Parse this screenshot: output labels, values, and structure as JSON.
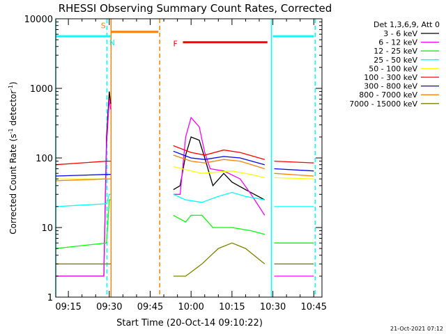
{
  "chart_data": {
    "type": "line",
    "title": "RHESSI Observing Summary Count Rates, Corrected",
    "xlabel": "Start Time (20-Oct-14 09:10:22)",
    "ylabel": "Corrected Count Rate (s",
    "ylabel_sup": "-1",
    "ylabel_tail": " detector",
    "ylabel_close": ")",
    "yscale": "log",
    "ylim": [
      1,
      10000
    ],
    "xlim": [
      "09:10:22",
      "10:48:00"
    ],
    "x_ticks": [
      "09:15",
      "09:30",
      "09:45",
      "10:00",
      "10:15",
      "10:30",
      "10:45"
    ],
    "y_ticks": [
      "1",
      "10",
      "100",
      "1000",
      "10000"
    ],
    "legend_title": "Det 1,3,6,9, Att 0",
    "legend_placement": "right",
    "grid": false,
    "series": [
      {
        "name": "3 - 6 keV",
        "color": "#000000",
        "points": [
          [
            "09:10:22",
            2
          ],
          [
            "09:28:00",
            2
          ],
          [
            "09:29:00",
            200
          ],
          [
            "09:30:00",
            900
          ],
          [
            "09:30:30",
            600
          ],
          [
            "09:31:00",
            null
          ],
          [
            "09:53:00",
            null
          ],
          [
            "09:53:30",
            35
          ],
          [
            "09:56:00",
            40
          ],
          [
            "09:58:00",
            110
          ],
          [
            "10:00:00",
            200
          ],
          [
            "10:03:00",
            180
          ],
          [
            "10:05:00",
            100
          ],
          [
            "10:08:00",
            40
          ],
          [
            "10:12:00",
            60
          ],
          [
            "10:15:00",
            45
          ],
          [
            "10:20:00",
            35
          ],
          [
            "10:27:00",
            25
          ],
          [
            "10:28:00",
            null
          ]
        ]
      },
      {
        "name": "6 - 12 keV",
        "color": "#ff00ff",
        "points": [
          [
            "09:10:22",
            2
          ],
          [
            "09:28:00",
            2
          ],
          [
            "09:29:00",
            150
          ],
          [
            "09:30:00",
            700
          ],
          [
            "09:30:30",
            500
          ],
          [
            "09:31:00",
            null
          ],
          [
            "09:53:00",
            null
          ],
          [
            "09:53:30",
            30
          ],
          [
            "09:56:00",
            30
          ],
          [
            "09:58:00",
            200
          ],
          [
            "10:00:00",
            380
          ],
          [
            "10:03:00",
            280
          ],
          [
            "10:05:00",
            120
          ],
          [
            "10:07:00",
            70
          ],
          [
            "10:12:00",
            65
          ],
          [
            "10:18:00",
            50
          ],
          [
            "10:22:00",
            30
          ],
          [
            "10:27:00",
            15
          ],
          [
            "10:28:00",
            null
          ],
          [
            "10:30:00",
            null
          ],
          [
            "10:30:30",
            2
          ],
          [
            "10:45:00",
            2
          ]
        ]
      },
      {
        "name": "12 - 25 keV",
        "color": "#00ff00",
        "points": [
          [
            "09:10:22",
            5
          ],
          [
            "09:29:00",
            6
          ],
          [
            "09:30:00",
            25
          ],
          [
            "09:30:30",
            25
          ],
          [
            "09:31:00",
            null
          ],
          [
            "09:53:00",
            null
          ],
          [
            "09:53:30",
            15
          ],
          [
            "09:58:00",
            12
          ],
          [
            "10:00:00",
            15
          ],
          [
            "10:04:00",
            15
          ],
          [
            "10:08:00",
            10
          ],
          [
            "10:15:00",
            10
          ],
          [
            "10:22:00",
            9
          ],
          [
            "10:27:00",
            8
          ],
          [
            "10:28:00",
            null
          ],
          [
            "10:30:00",
            null
          ],
          [
            "10:30:30",
            6
          ],
          [
            "10:45:00",
            6
          ]
        ]
      },
      {
        "name": "25 - 50 keV",
        "color": "#00ffff",
        "points": [
          [
            "09:10:22",
            20
          ],
          [
            "09:29:00",
            22
          ],
          [
            "09:30:00",
            30
          ],
          [
            "09:30:30",
            30
          ],
          [
            "09:31:00",
            null
          ],
          [
            "09:53:00",
            null
          ],
          [
            "09:53:30",
            30
          ],
          [
            "09:58:00",
            25
          ],
          [
            "10:04:00",
            23
          ],
          [
            "10:10:00",
            28
          ],
          [
            "10:15:00",
            32
          ],
          [
            "10:20:00",
            28
          ],
          [
            "10:27:00",
            25
          ],
          [
            "10:28:00",
            null
          ],
          [
            "10:30:00",
            null
          ],
          [
            "10:30:30",
            20
          ],
          [
            "10:45:00",
            20
          ]
        ]
      },
      {
        "name": "50 - 100 keV",
        "color": "#ffff00",
        "points": [
          [
            "09:10:22",
            50
          ],
          [
            "09:29:00",
            50
          ],
          [
            "09:30:30",
            50
          ],
          [
            "09:31:00",
            null
          ],
          [
            "09:53:00",
            null
          ],
          [
            "09:53:30",
            75
          ],
          [
            "09:58:00",
            68
          ],
          [
            "10:04:00",
            60
          ],
          [
            "10:15:00",
            65
          ],
          [
            "10:22:00",
            58
          ],
          [
            "10:27:00",
            52
          ],
          [
            "10:28:00",
            null
          ],
          [
            "10:30:00",
            null
          ],
          [
            "10:30:30",
            52
          ],
          [
            "10:45:00",
            50
          ]
        ]
      },
      {
        "name": "100 - 300 keV",
        "color": "#ff0000",
        "points": [
          [
            "09:10:22",
            80
          ],
          [
            "09:29:00",
            90
          ],
          [
            "09:30:30",
            90
          ],
          [
            "09:31:00",
            null
          ],
          [
            "09:53:00",
            null
          ],
          [
            "09:53:30",
            150
          ],
          [
            "10:00:00",
            120
          ],
          [
            "10:05:00",
            110
          ],
          [
            "10:12:00",
            130
          ],
          [
            "10:18:00",
            120
          ],
          [
            "10:27:00",
            95
          ],
          [
            "10:28:00",
            null
          ],
          [
            "10:30:00",
            null
          ],
          [
            "10:30:30",
            90
          ],
          [
            "10:45:00",
            85
          ]
        ]
      },
      {
        "name": "300 - 800 keV",
        "color": "#0000ff",
        "points": [
          [
            "09:10:22",
            55
          ],
          [
            "09:29:00",
            58
          ],
          [
            "09:30:30",
            58
          ],
          [
            "09:31:00",
            null
          ],
          [
            "09:53:00",
            null
          ],
          [
            "09:53:30",
            125
          ],
          [
            "10:00:00",
            100
          ],
          [
            "10:05:00",
            95
          ],
          [
            "10:12:00",
            105
          ],
          [
            "10:18:00",
            100
          ],
          [
            "10:27:00",
            80
          ],
          [
            "10:28:00",
            null
          ],
          [
            "10:30:00",
            null
          ],
          [
            "10:30:30",
            70
          ],
          [
            "10:45:00",
            65
          ]
        ]
      },
      {
        "name": "800 - 7000 keV",
        "color": "#ff8000",
        "points": [
          [
            "09:10:22",
            47
          ],
          [
            "09:29:00",
            50
          ],
          [
            "09:30:30",
            50
          ],
          [
            "09:31:00",
            null
          ],
          [
            "09:53:00",
            null
          ],
          [
            "09:53:30",
            110
          ],
          [
            "10:00:00",
            90
          ],
          [
            "10:05:00",
            85
          ],
          [
            "10:12:00",
            95
          ],
          [
            "10:18:00",
            90
          ],
          [
            "10:27:00",
            70
          ],
          [
            "10:28:00",
            null
          ],
          [
            "10:30:00",
            null
          ],
          [
            "10:30:30",
            60
          ],
          [
            "10:45:00",
            55
          ]
        ]
      },
      {
        "name": "7000 - 15000 keV",
        "color": "#808000",
        "points": [
          [
            "09:10:22",
            3
          ],
          [
            "09:29:00",
            3
          ],
          [
            "09:30:30",
            3
          ],
          [
            "09:31:00",
            null
          ],
          [
            "09:53:00",
            null
          ],
          [
            "09:53:30",
            2
          ],
          [
            "09:58:00",
            2
          ],
          [
            "10:04:00",
            3
          ],
          [
            "10:10:00",
            5
          ],
          [
            "10:15:00",
            6
          ],
          [
            "10:20:00",
            5
          ],
          [
            "10:27:00",
            3
          ],
          [
            "10:28:00",
            null
          ],
          [
            "10:30:00",
            null
          ],
          [
            "10:30:30",
            3
          ],
          [
            "10:45:00",
            3
          ]
        ]
      }
    ],
    "flags": [
      {
        "label": "S",
        "color": "#ff8000",
        "value": 6500,
        "start": "09:30:30",
        "end": "09:48:00"
      },
      {
        "label": "F",
        "color": "#ff0000",
        "value": 4600,
        "start": "09:57:00",
        "end": "10:28:00"
      },
      {
        "label": "N",
        "color": "#00ffff",
        "value": 5600,
        "start": "09:10:22",
        "end": "09:30:30"
      },
      {
        "label": "",
        "color": "#00ffff",
        "value": 5600,
        "start": "10:30:00",
        "end": "10:45:00"
      }
    ],
    "markers": [
      {
        "time": "09:10:22",
        "color": "#00ffff",
        "style": "solid"
      },
      {
        "time": "09:29:10",
        "color": "#00ffff",
        "style": "dashed"
      },
      {
        "time": "09:30:40",
        "color": "#ff8000",
        "style": "solid"
      },
      {
        "time": "09:48:30",
        "color": "#ff8000",
        "style": "dashed"
      },
      {
        "time": "10:29:30",
        "color": "#00ffff",
        "style": "solid"
      },
      {
        "time": "10:45:30",
        "color": "#00ffff",
        "style": "dashed"
      }
    ],
    "timestamp": "21-Oct-2021 07:12"
  }
}
